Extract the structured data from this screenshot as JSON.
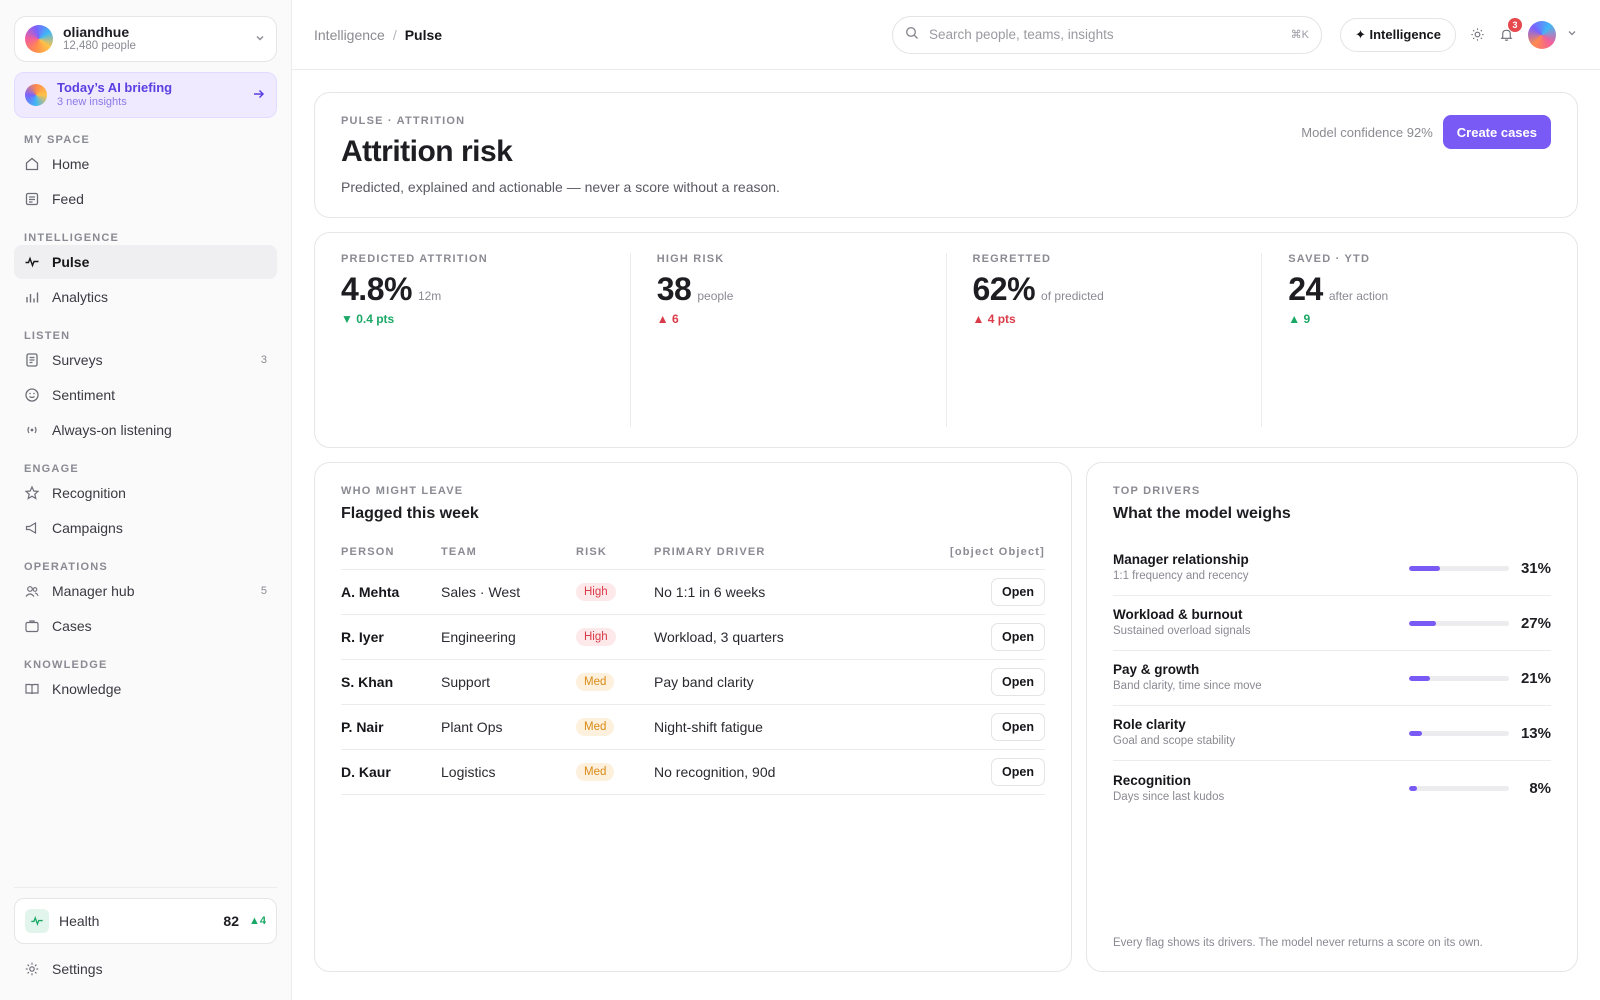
{
  "org": {
    "name": "oliandhue",
    "people": "12,480 people"
  },
  "briefing": {
    "title": "Today’s AI briefing",
    "sub": "3 new insights"
  },
  "nav": {
    "my_space": "MY SPACE",
    "home": "Home",
    "feed": "Feed",
    "intelligence": "INTELLIGENCE",
    "pulse": "Pulse",
    "analytics": "Analytics",
    "listen": "LISTEN",
    "surveys": "Surveys",
    "surveys_count": "3",
    "sentiment": "Sentiment",
    "always_on": "Always-on listening",
    "engage": "ENGAGE",
    "recognition": "Recognition",
    "campaigns": "Campaigns",
    "operations": "OPERATIONS",
    "manager_hub": "Manager hub",
    "manager_hub_count": "5",
    "cases": "Cases",
    "knowledge_section": "KNOWLEDGE",
    "knowledge": "Knowledge"
  },
  "health": {
    "label": "Health",
    "score": "82",
    "delta": "▲4"
  },
  "settings": "Settings",
  "topbar": {
    "crumb_parent": "Intelligence",
    "crumb_sep": "/",
    "crumb_current": "Pulse",
    "search_placeholder": "Search people, teams, insights",
    "search_kbd": "⌘K",
    "intelligence_btn": "✦ Intelligence",
    "notifications": "3"
  },
  "hero": {
    "eyebrow": "PULSE · ATTRITION",
    "title": "Attrition risk",
    "subtitle": "Predicted, explained and actionable — never a score without a reason.",
    "confidence": "Model confidence 92%",
    "cta": "Create cases"
  },
  "kpis": [
    {
      "label": "PREDICTED ATTRITION",
      "value": "4.8%",
      "unit": "12m",
      "delta": "▼ 0.4 pts",
      "tone": "good"
    },
    {
      "label": "HIGH RISK",
      "value": "38",
      "unit": "people",
      "delta": "▲ 6",
      "tone": "bad"
    },
    {
      "label": "REGRETTED",
      "value": "62%",
      "unit": "of predicted",
      "delta": "▲ 4 pts",
      "tone": "bad"
    },
    {
      "label": "SAVED · YTD",
      "value": "24",
      "unit": "after action",
      "delta": "▲ 9",
      "tone": "good"
    }
  ],
  "flagged": {
    "eyebrow": "WHO MIGHT LEAVE",
    "title": "Flagged this week",
    "columns": [
      "PERSON",
      "TEAM",
      "RISK",
      "PRIMARY DRIVER",
      "[object Object]"
    ],
    "open_label": "Open",
    "rows": [
      {
        "person": "A. Mehta",
        "team": "Sales · West",
        "risk": "High",
        "driver": "No 1:1 in 6 weeks"
      },
      {
        "person": "R. Iyer",
        "team": "Engineering",
        "risk": "High",
        "driver": "Workload, 3 quarters"
      },
      {
        "person": "S. Khan",
        "team": "Support",
        "risk": "Med",
        "driver": "Pay band clarity"
      },
      {
        "person": "P. Nair",
        "team": "Plant Ops",
        "risk": "Med",
        "driver": "Night-shift fatigue"
      },
      {
        "person": "D. Kaur",
        "team": "Logistics",
        "risk": "Med",
        "driver": "No recognition, 90d"
      }
    ]
  },
  "drivers": {
    "eyebrow": "TOP DRIVERS",
    "title": "What the model weighs",
    "items": [
      {
        "name": "Manager relationship",
        "sub": "1:1 frequency and recency",
        "pct": "31%",
        "value": 31
      },
      {
        "name": "Workload & burnout",
        "sub": "Sustained overload signals",
        "pct": "27%",
        "value": 27
      },
      {
        "name": "Pay & growth",
        "sub": "Band clarity, time since move",
        "pct": "21%",
        "value": 21
      },
      {
        "name": "Role clarity",
        "sub": "Goal and scope stability",
        "pct": "13%",
        "value": 13
      },
      {
        "name": "Recognition",
        "sub": "Days since last kudos",
        "pct": "8%",
        "value": 8
      }
    ],
    "footnote": "Every flag shows its drivers. The model never returns a score on its own."
  }
}
